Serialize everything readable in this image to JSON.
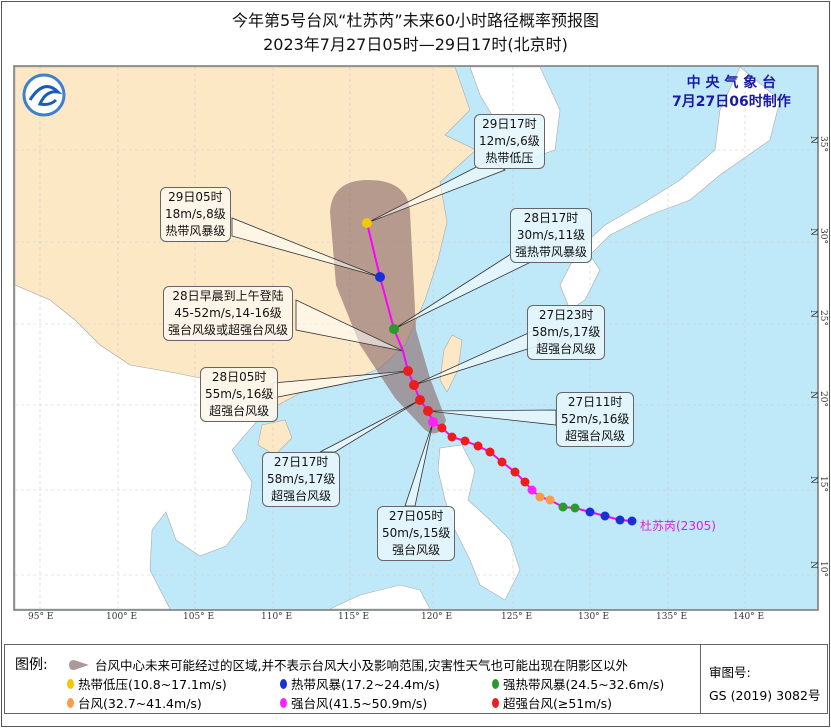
{
  "header": {
    "title": "今年第5号台风“杜苏芮”未来60小时路径概率预报图",
    "subtitle": "2023年7月27日05时—29日17时(北京时)"
  },
  "agency": {
    "name": "中 央 气 象 台",
    "issued": "7月27日06时制作",
    "logo": "cma-logo"
  },
  "map": {
    "colors": {
      "sea": "#bfe8f8",
      "china": "#fde8c6",
      "other_land": "#ffffff",
      "cone": "#8a6a6a",
      "track_line": "#ff00ff"
    },
    "longitude_labels": [
      "95° E",
      "100° E",
      "105° E",
      "110° E",
      "115° E",
      "120° E",
      "125° E",
      "130° E",
      "135° E",
      "140° E"
    ],
    "latitude_labels": [
      "35° N",
      "30° N",
      "25° N",
      "20° N",
      "15° N",
      "10° N"
    ],
    "storm_label": "杜苏芮(2305)"
  },
  "forecasts": [
    {
      "time": "29日17时",
      "wind": "12m/s,6级",
      "category": "热带低压",
      "color": "#f2c800"
    },
    {
      "time": "29日05时",
      "wind": "18m/s,8级",
      "category": "热带风暴级",
      "color": "#1a2fd6"
    },
    {
      "time": "28日17时",
      "wind": "30m/s,11级",
      "category": "强热带风暴级",
      "color": "#2a9a2a"
    },
    {
      "time": "28日早晨到上午登陆",
      "wind": "45-52m/s,14-16级",
      "category": "强台风级或超强台风级"
    },
    {
      "time": "27日23时",
      "wind": "58m/s,17级",
      "category": "超强台风级",
      "color": "#ee1c1c"
    },
    {
      "time": "28日05时",
      "wind": "55m/s,16级",
      "category": "超强台风级",
      "color": "#ee1c1c"
    },
    {
      "time": "27日11时",
      "wind": "52m/s,16级",
      "category": "超强台风级",
      "color": "#ee1c1c"
    },
    {
      "time": "27日17时",
      "wind": "58m/s,17级",
      "category": "超强台风级",
      "color": "#ee1c1c"
    },
    {
      "time": "27日05时",
      "wind": "50m/s,15级",
      "category": "强台风级",
      "color": "#ff22ff"
    }
  ],
  "legend": {
    "title": "图例:",
    "cone_text": "台风中心未来可能经过的区域,并不表示台风大小及影响范围,灾害性天气也可能出现在阴影区以外",
    "items": [
      {
        "label": "热带低压(10.8~17.1m/s)",
        "color": "#f2c800"
      },
      {
        "label": "热带风暴(17.2~24.4m/s)",
        "color": "#1a2fd6"
      },
      {
        "label": "强热带风暴(24.5~32.6m/s)",
        "color": "#2a9a2a"
      },
      {
        "label": "台风(32.7~41.4m/s)",
        "color": "#ff9a4a"
      },
      {
        "label": "强台风(41.5~50.9m/s)",
        "color": "#ff22ff"
      },
      {
        "label": "超强台风(≥51m/s)",
        "color": "#ee1c1c"
      }
    ],
    "approval_label": "审图号:",
    "approval_number": "GS (2019) 3082号"
  }
}
